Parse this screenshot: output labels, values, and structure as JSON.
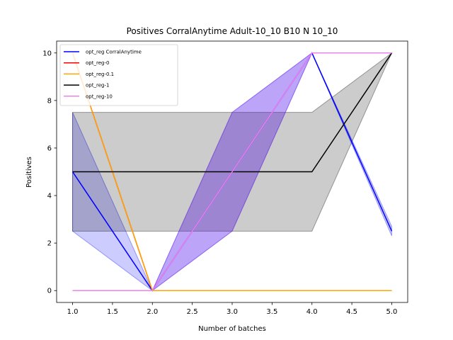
{
  "chart_data": {
    "type": "line",
    "title": "Positives CorralAnytime Adult-10_10 B10 N 10_10",
    "xlabel": "Number of batches",
    "ylabel": "Positives",
    "xlim": [
      0.8,
      5.2
    ],
    "ylim": [
      -0.5,
      10.5
    ],
    "xticks": [
      1.0,
      1.5,
      2.0,
      2.5,
      3.0,
      3.5,
      4.0,
      4.5,
      5.0
    ],
    "xtick_labels": [
      "1.0",
      "1.5",
      "2.0",
      "2.5",
      "3.0",
      "3.5",
      "4.0",
      "4.5",
      "5.0"
    ],
    "yticks": [
      0,
      2,
      4,
      6,
      8,
      10
    ],
    "ytick_labels": [
      "0",
      "2",
      "4",
      "6",
      "8",
      "10"
    ],
    "legend_position": "top-left",
    "grid": false,
    "x": [
      1,
      2,
      3,
      4,
      5
    ],
    "series": [
      {
        "name": "opt_reg CorralAnytime",
        "color": "#0000ff",
        "values": [
          5,
          0,
          5,
          10,
          2.5
        ],
        "band_lower": [
          2.5,
          0,
          2.5,
          10,
          2.3
        ],
        "band_upper": [
          7.5,
          0,
          7.5,
          10,
          2.7
        ]
      },
      {
        "name": "opt_reg-0",
        "color": "#ff0000",
        "values": [
          10,
          0,
          0,
          0,
          0
        ],
        "band_lower": [
          10,
          0,
          0,
          0,
          0
        ],
        "band_upper": [
          10,
          0,
          0,
          0,
          0
        ]
      },
      {
        "name": "opt_reg-0.1",
        "color": "#ffa500",
        "values": [
          10,
          0,
          0,
          0,
          0
        ],
        "band_lower": [
          10,
          0,
          0,
          0,
          0
        ],
        "band_upper": [
          10,
          0,
          0,
          0,
          0
        ]
      },
      {
        "name": "opt_reg-1",
        "color": "#000000",
        "values": [
          5,
          5,
          5,
          5,
          10
        ],
        "band_lower": [
          2.5,
          2.5,
          2.5,
          2.5,
          10
        ],
        "band_upper": [
          7.5,
          7.5,
          7.5,
          7.5,
          10
        ]
      },
      {
        "name": "opt_reg-10",
        "color": "#ee82ee",
        "values": [
          0,
          0,
          5,
          10,
          10
        ],
        "band_lower": [
          0,
          0,
          2.5,
          10,
          10
        ],
        "band_upper": [
          0,
          0,
          7.5,
          10,
          10
        ]
      }
    ]
  }
}
